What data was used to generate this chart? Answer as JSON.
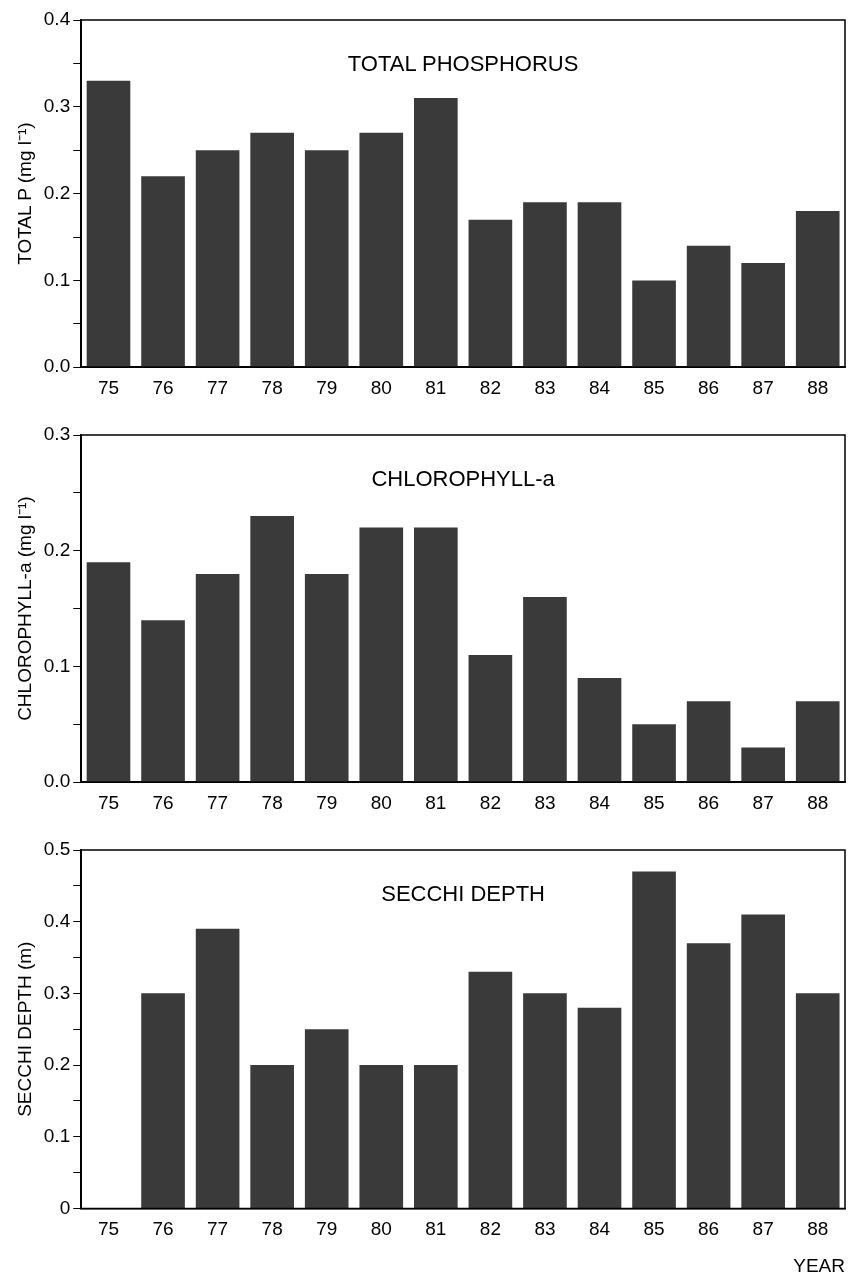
{
  "chart_data": [
    {
      "type": "bar",
      "title": "TOTAL PHOSPHORUS",
      "ylabel": "TOTAL P (mg l⁻¹)",
      "categories": [
        "75",
        "76",
        "77",
        "78",
        "79",
        "80",
        "81",
        "82",
        "83",
        "84",
        "85",
        "86",
        "87",
        "88"
      ],
      "values": [
        0.33,
        0.22,
        0.25,
        0.27,
        0.25,
        0.27,
        0.31,
        0.17,
        0.19,
        0.19,
        0.1,
        0.14,
        0.12,
        0.18
      ],
      "color": "#3a3a3a",
      "ylim": [
        0,
        0.4
      ],
      "yticks": [
        {
          "value": 0,
          "label": "0.0"
        },
        {
          "value": 0.05,
          "label": null
        },
        {
          "value": 0.1,
          "label": "0.1"
        },
        {
          "value": 0.15,
          "label": null
        },
        {
          "value": 0.2,
          "label": "0.2"
        },
        {
          "value": 0.25,
          "label": null
        },
        {
          "value": 0.3,
          "label": "0.3"
        },
        {
          "value": 0.35,
          "label": null
        },
        {
          "value": 0.4,
          "label": "0.4"
        }
      ],
      "grid": false,
      "legend": false
    },
    {
      "type": "bar",
      "title": "CHLOROPHYLL-a",
      "ylabel": "CHLOROPHYLL-a (mg l⁻¹)",
      "categories": [
        "75",
        "76",
        "77",
        "78",
        "79",
        "80",
        "81",
        "82",
        "83",
        "84",
        "85",
        "86",
        "87",
        "88"
      ],
      "values": [
        0.19,
        0.14,
        0.18,
        0.23,
        0.18,
        0.22,
        0.22,
        0.11,
        0.16,
        0.09,
        0.05,
        0.07,
        0.03,
        0.07
      ],
      "color": "#3a3a3a",
      "ylim": [
        0,
        0.3
      ],
      "yticks": [
        {
          "value": 0,
          "label": "0.0"
        },
        {
          "value": 0.05,
          "label": null
        },
        {
          "value": 0.1,
          "label": "0.1"
        },
        {
          "value": 0.15,
          "label": null
        },
        {
          "value": 0.2,
          "label": "0.2"
        },
        {
          "value": 0.25,
          "label": null
        },
        {
          "value": 0.3,
          "label": "0.3"
        }
      ],
      "grid": false,
      "legend": false
    },
    {
      "type": "bar",
      "title": "SECCHI DEPTH",
      "ylabel": "SECCHI DEPTH (m)",
      "xlabel": "YEAR",
      "categories": [
        "75",
        "76",
        "77",
        "78",
        "79",
        "80",
        "81",
        "82",
        "83",
        "84",
        "85",
        "86",
        "87",
        "88"
      ],
      "values": [
        null,
        0.3,
        0.39,
        0.2,
        0.25,
        0.2,
        0.2,
        0.33,
        0.3,
        0.28,
        0.47,
        0.37,
        0.41,
        0.3
      ],
      "color": "#3a3a3a",
      "ylim": [
        0,
        0.5
      ],
      "yticks": [
        0,
        {
          "value": 0.05,
          "label": null
        },
        {
          "value": 0.1,
          "label": "0.1"
        },
        {
          "value": 0.15,
          "label": null
        },
        {
          "value": 0.2,
          "label": "0.2"
        },
        {
          "value": 0.25,
          "label": null
        },
        {
          "value": 0.3,
          "label": "0.3"
        },
        {
          "value": 0.35,
          "label": null
        },
        {
          "value": 0.4,
          "label": "0.4"
        },
        {
          "value": 0.45,
          "label": null
        },
        {
          "value": 0.5,
          "label": "0.5"
        }
      ],
      "grid": false,
      "legend": false
    }
  ]
}
